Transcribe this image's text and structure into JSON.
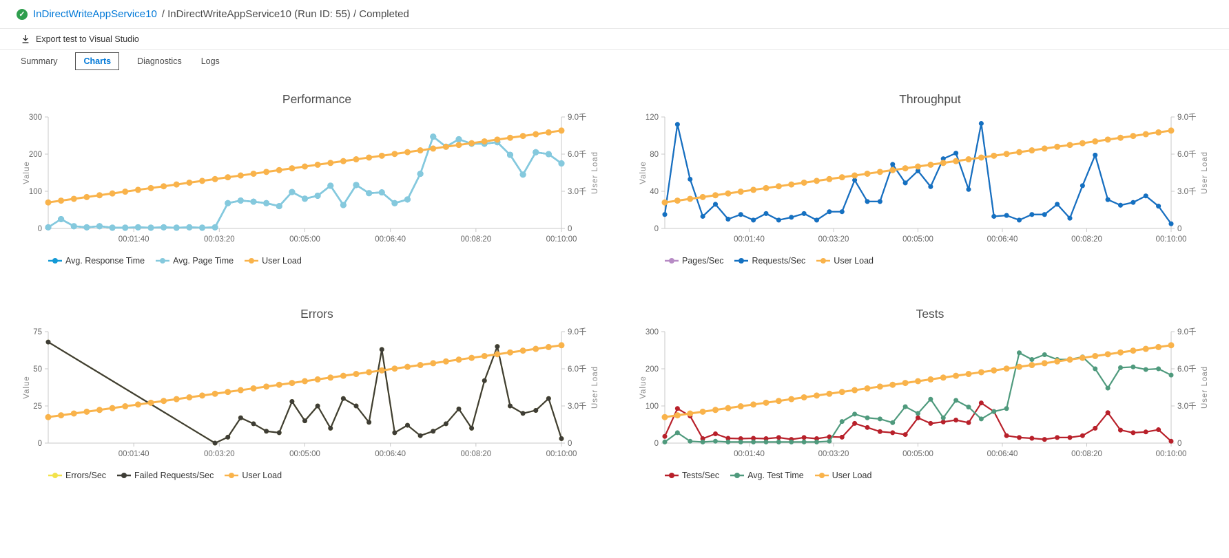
{
  "header": {
    "breadcrumb_link": "InDirectWriteAppService10",
    "breadcrumb_rest": "/ InDirectWriteAppService10 (Run ID: 55) / Completed",
    "export_label": "Export test to Visual Studio"
  },
  "tabs": [
    {
      "label": "Summary",
      "selected": false
    },
    {
      "label": "Charts",
      "selected": true
    },
    {
      "label": "Diagnostics",
      "selected": false
    },
    {
      "label": "Logs",
      "selected": false
    }
  ],
  "colors": {
    "accent_link": "#0078d7",
    "success_green": "#2f9e4e",
    "axis_line": "#c8c8c8",
    "tick_text": "#666666",
    "axis_title_text": "#8c8c8c"
  },
  "chart_data": [
    {
      "type": "line",
      "title": "Performance",
      "ylabel": "Value",
      "y2label": "User Load",
      "ylim": [
        0,
        300
      ],
      "yticks": [
        0,
        100,
        200,
        300
      ],
      "y2lim": [
        0,
        9000
      ],
      "y2tick_labels": [
        "0",
        "3.0千",
        "6.0千",
        "9.0千"
      ],
      "x_interval_sec": 15,
      "xlim_sec": [
        0,
        600
      ],
      "xtick_seconds": [
        100,
        200,
        300,
        400,
        500,
        600
      ],
      "xtick_labels": [
        "00:01:40",
        "00:03:20",
        "00:05:00",
        "00:06:40",
        "00:08:20",
        "00:10:00"
      ],
      "grid": false,
      "legend_position": "bottom",
      "series": [
        {
          "name": "Avg. Response Time",
          "color": "#149ad6",
          "axis": "left",
          "values": [
            3,
            25,
            6,
            3,
            6,
            2,
            2,
            3,
            2,
            3,
            2,
            3,
            2,
            3,
            68,
            75,
            72,
            68,
            60,
            98,
            80,
            88,
            115,
            63,
            117,
            95,
            97,
            68,
            78,
            147,
            247,
            220,
            240,
            228,
            228,
            232,
            198,
            145,
            205,
            200,
            175
          ]
        },
        {
          "name": "Avg. Page Time",
          "color": "#85c9dd",
          "axis": "left",
          "values": [
            3,
            25,
            6,
            3,
            6,
            2,
            2,
            3,
            2,
            3,
            2,
            3,
            2,
            3,
            68,
            75,
            72,
            68,
            60,
            98,
            80,
            88,
            115,
            63,
            117,
            95,
            97,
            68,
            78,
            147,
            247,
            220,
            240,
            228,
            228,
            232,
            198,
            145,
            205,
            200,
            175
          ]
        },
        {
          "name": "User Load",
          "color": "#f9b34b",
          "axis": "right",
          "values": [
            2100,
            2245,
            2390,
            2535,
            2680,
            2825,
            2970,
            3115,
            3260,
            3405,
            3550,
            3695,
            3840,
            3985,
            4130,
            4275,
            4420,
            4565,
            4710,
            4855,
            5000,
            5145,
            5290,
            5435,
            5580,
            5725,
            5870,
            6015,
            6160,
            6305,
            6450,
            6595,
            6740,
            6885,
            7030,
            7175,
            7320,
            7465,
            7610,
            7755,
            7900
          ]
        }
      ]
    },
    {
      "type": "line",
      "title": "Throughput",
      "ylabel": "Value",
      "y2label": "User Load",
      "ylim": [
        0,
        120
      ],
      "yticks": [
        0,
        40,
        80,
        120
      ],
      "y2lim": [
        0,
        9000
      ],
      "y2tick_labels": [
        "0",
        "3.0千",
        "6.0千",
        "9.0千"
      ],
      "x_interval_sec": 15,
      "xlim_sec": [
        0,
        600
      ],
      "xtick_seconds": [
        100,
        200,
        300,
        400,
        500,
        600
      ],
      "xtick_labels": [
        "00:01:40",
        "00:03:20",
        "00:05:00",
        "00:06:40",
        "00:08:20",
        "00:10:00"
      ],
      "grid": false,
      "legend_position": "bottom",
      "series": [
        {
          "name": "Pages/Sec",
          "color": "#b78bc5",
          "axis": "left",
          "values": [
            15,
            112,
            53,
            13,
            26,
            10,
            15,
            9,
            16,
            9,
            12,
            16,
            9,
            18,
            18,
            52,
            29,
            29,
            69,
            49,
            62,
            45,
            75,
            81,
            42,
            113,
            13,
            14,
            9,
            15,
            15,
            26,
            11,
            46,
            79,
            31,
            25,
            28,
            35,
            24,
            5
          ]
        },
        {
          "name": "Requests/Sec",
          "color": "#1471c1",
          "axis": "left",
          "values": [
            15,
            112,
            53,
            13,
            26,
            10,
            15,
            9,
            16,
            9,
            12,
            16,
            9,
            18,
            18,
            52,
            29,
            29,
            69,
            49,
            62,
            45,
            75,
            81,
            42,
            113,
            13,
            14,
            9,
            15,
            15,
            26,
            11,
            46,
            79,
            31,
            25,
            28,
            35,
            24,
            5
          ]
        },
        {
          "name": "User Load",
          "color": "#f9b34b",
          "axis": "right",
          "values": [
            2100,
            2245,
            2390,
            2535,
            2680,
            2825,
            2970,
            3115,
            3260,
            3405,
            3550,
            3695,
            3840,
            3985,
            4130,
            4275,
            4420,
            4565,
            4710,
            4855,
            5000,
            5145,
            5290,
            5435,
            5580,
            5725,
            5870,
            6015,
            6160,
            6305,
            6450,
            6595,
            6740,
            6885,
            7030,
            7175,
            7320,
            7465,
            7610,
            7755,
            7900
          ]
        }
      ]
    },
    {
      "type": "line",
      "title": "Errors",
      "ylabel": "Value",
      "y2label": "User Load",
      "ylim": [
        0,
        75
      ],
      "yticks": [
        0,
        25,
        50,
        75
      ],
      "y2lim": [
        0,
        9000
      ],
      "y2tick_labels": [
        "0",
        "3.0千",
        "6.0千",
        "9.0千"
      ],
      "x_interval_sec": 15,
      "xlim_sec": [
        0,
        600
      ],
      "xtick_seconds": [
        100,
        200,
        300,
        400,
        500,
        600
      ],
      "xtick_labels": [
        "00:01:40",
        "00:03:20",
        "00:05:00",
        "00:06:40",
        "00:08:20",
        "00:10:00"
      ],
      "grid": false,
      "legend_position": "bottom",
      "series": [
        {
          "name": "Errors/Sec",
          "color": "#f2e24b",
          "axis": "left",
          "values": [
            68,
            null,
            null,
            null,
            null,
            null,
            null,
            null,
            null,
            null,
            null,
            null,
            null,
            0,
            4,
            17,
            13,
            8,
            7,
            28,
            15,
            25,
            10,
            30,
            25,
            14,
            63,
            7,
            12,
            5,
            8,
            13,
            23,
            10,
            42,
            65,
            25,
            20,
            22,
            30,
            3
          ]
        },
        {
          "name": "Failed Requests/Sec",
          "color": "#3e3d36",
          "axis": "left",
          "values": [
            68,
            null,
            null,
            null,
            null,
            null,
            null,
            null,
            null,
            null,
            null,
            null,
            null,
            0,
            4,
            17,
            13,
            8,
            7,
            28,
            15,
            25,
            10,
            30,
            25,
            14,
            63,
            7,
            12,
            5,
            8,
            13,
            23,
            10,
            42,
            65,
            25,
            20,
            22,
            30,
            3
          ]
        },
        {
          "name": "User Load",
          "color": "#f9b34b",
          "axis": "right",
          "values": [
            2100,
            2245,
            2390,
            2535,
            2680,
            2825,
            2970,
            3115,
            3260,
            3405,
            3550,
            3695,
            3840,
            3985,
            4130,
            4275,
            4420,
            4565,
            4710,
            4855,
            5000,
            5145,
            5290,
            5435,
            5580,
            5725,
            5870,
            6015,
            6160,
            6305,
            6450,
            6595,
            6740,
            6885,
            7030,
            7175,
            7320,
            7465,
            7610,
            7755,
            7900
          ]
        }
      ]
    },
    {
      "type": "line",
      "title": "Tests",
      "ylabel": "Value",
      "y2label": "User Load",
      "ylim": [
        0,
        300
      ],
      "yticks": [
        0,
        100,
        200,
        300
      ],
      "y2lim": [
        0,
        9000
      ],
      "y2tick_labels": [
        "0",
        "3.0千",
        "6.0千",
        "9.0千"
      ],
      "x_interval_sec": 15,
      "xlim_sec": [
        0,
        600
      ],
      "xtick_seconds": [
        100,
        200,
        300,
        400,
        500,
        600
      ],
      "xtick_labels": [
        "00:01:40",
        "00:03:20",
        "00:05:00",
        "00:06:40",
        "00:08:20",
        "00:10:00"
      ],
      "grid": false,
      "legend_position": "bottom",
      "series": [
        {
          "name": "Tests/Sec",
          "color": "#b8202a",
          "axis": "left",
          "values": [
            18,
            93,
            73,
            12,
            25,
            13,
            12,
            13,
            12,
            15,
            10,
            15,
            12,
            17,
            16,
            53,
            42,
            31,
            28,
            23,
            68,
            53,
            57,
            62,
            55,
            108,
            85,
            20,
            15,
            13,
            10,
            15,
            15,
            20,
            40,
            82,
            35,
            28,
            30,
            36,
            5
          ]
        },
        {
          "name": "Avg. Test Time",
          "color": "#4f9a7d",
          "axis": "left",
          "values": [
            3,
            28,
            5,
            3,
            5,
            3,
            3,
            3,
            3,
            3,
            3,
            3,
            3,
            5,
            58,
            78,
            68,
            65,
            55,
            98,
            80,
            118,
            68,
            115,
            97,
            65,
            85,
            93,
            243,
            225,
            238,
            225,
            225,
            232,
            200,
            148,
            203,
            205,
            198,
            200,
            183
          ]
        },
        {
          "name": "User Load",
          "color": "#f9b34b",
          "axis": "right",
          "values": [
            2100,
            2245,
            2390,
            2535,
            2680,
            2825,
            2970,
            3115,
            3260,
            3405,
            3550,
            3695,
            3840,
            3985,
            4130,
            4275,
            4420,
            4565,
            4710,
            4855,
            5000,
            5145,
            5290,
            5435,
            5580,
            5725,
            5870,
            6015,
            6160,
            6305,
            6450,
            6595,
            6740,
            6885,
            7030,
            7175,
            7320,
            7465,
            7610,
            7755,
            7900
          ]
        }
      ]
    }
  ]
}
